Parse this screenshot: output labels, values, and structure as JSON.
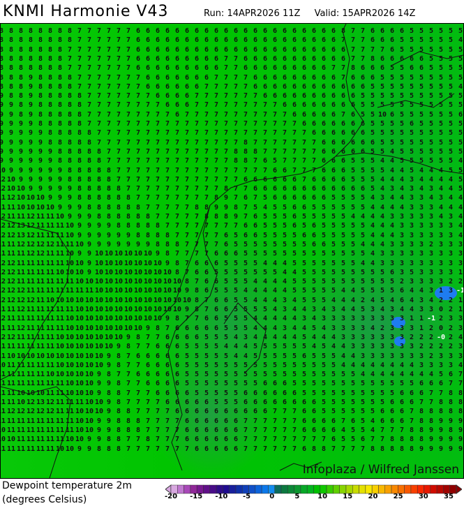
{
  "header": {
    "title": "KNMI Harmonie V43",
    "run": "Run: 14APR2026 11Z",
    "valid": "Valid: 15APR2026 14Z"
  },
  "map": {
    "variable": "Dewpoint temperature 2m",
    "units": "(degrees Celsius)",
    "credit": "Infoplaza / Wilfred Janssen",
    "values": [
      "8 8 8 8 8 8 8 8 7 7 7 7 7 7 6 6 6 6 6 6 6 6 6 6 6 6 6 6 6 6 6 6 6 6 6 8 7 7 6 6 6 6 5 5 5 5 5 5",
      "8 8 8 8 8 8 8 8 7 7 7 7 7 7 6 6 6 6 6 6 6 6 6 6 6 6 6 6 6 6 6 6 6 6 6 7 7 7 6 6 6 5 5 5 5 5 5 4",
      "8 8 8 8 8 8 8 7 7 7 7 7 7 7 6 6 6 6 6 6 6 6 6 6 6 6 6 6 6 6 6 6 6 6 6 6 7 7 7 7 6 5 5 5 5 5 5 5",
      "8 8 8 8 8 8 8 7 7 7 7 7 7 7 6 6 6 6 6 6 6 6 6 7 7 6 6 6 6 6 6 6 6 6 6 6 7 7 8 6 6 6 6 6 5 5 5 5",
      "8 8 8 8 8 8 8 7 7 7 7 7 7 7 6 6 6 6 6 6 6 6 6 7 7 6 6 6 6 6 6 6 6 6 7 7 8 6 6 6 5 5 6 6 5 5 5 5",
      "8 8 8 9 8 8 8 8 7 7 7 7 7 7 7 6 6 6 6 6 6 6 7 7 7 7 6 6 6 6 6 6 6 6 6 7 6 6 6 5 5 5 5 5 5 5 5 5",
      "8 8 8 9 8 8 8 8 7 7 7 7 7 7 7 6 6 6 6 6 6 7 7 7 7 7 6 6 6 6 6 6 6 6 6 6 6 6 5 5 5 5 5 5 5 5 5 4",
      "9 8 8 9 8 8 8 8 8 7 7 7 7 7 7 7 6 6 6 6 7 7 7 7 7 7 7 6 6 6 6 6 6 6 6 6 6 5 5 5 5 5 5 5 5 5 5 5",
      "9 9 8 9 8 8 8 8 8 7 7 7 7 7 7 7 7 6 6 6 7 7 7 7 7 7 7 7 7 6 6 6 6 6 6 6 6 5 5 5 5 5 5 5 5 5 5 5",
      "9 9 8 9 8 8 8 8 8 7 7 7 7 7 7 7 7 7 6 7 7 7 7 7 7 7 7 7 7 7 6 6 6 6 6 7 6 5 5 10 6 5 5 5 5 5 5 6",
      "9 9 9 9 8 8 8 8 8 7 7 7 7 7 7 7 7 7 7 7 7 7 7 7 7 7 7 7 7 7 7 6 6 6 6 6 6 6 5 5 5 5 6 5 5 5 5 5",
      "9 9 9 9 9 8 8 8 8 8 7 7 7 7 7 7 7 7 7 7 7 7 7 7 7 7 7 7 7 7 7 7 6 6 6 6 6 6 5 5 5 5 5 5 5 5 5 5",
      "9 9 9 9 9 8 8 8 8 8 7 7 7 7 7 7 7 7 7 7 7 7 7 7 7 8 7 7 7 7 7 7 7 6 6 6 6 6 6 5 5 5 5 5 5 5 5 5",
      "9 9 9 9 9 9 8 8 8 8 8 7 7 7 7 7 7 7 7 7 7 7 7 7 8 8 8 7 7 7 7 7 7 6 6 6 6 6 5 5 4 5 5 5 5 5 5 5",
      "9 9 9 9 9 9 8 8 8 8 8 7 7 7 7 7 7 7 7 7 7 7 7 7 8 8 7 6 5 7 7 7 7 6 6 6 5 5 5 4 4 5 5 5 5 5 5 4",
      "10 9 9 9 9 9 9 8 8 8 8 8 7 7 7 7 7 7 7 7 7 7 7 7 7 7 7 7 6 6 7 7 7 6 6 6 5 5 5 5 4 4 5 4 4 4 5 5",
      "12 10 9 9 9 9 9 8 8 8 8 8 7 7 7 7 7 7 7 7 7 7 7 7 7 6 6 6 6 6 6 7 6 6 6 6 5 5 5 4 4 4 3 4 4 4 4 5",
      "12 10 10 9 9 9 9 9 8 8 8 8 8 7 7 7 7 7 7 7 7 7 7 8 7 7 6 6 6 6 6 6 6 6 6 6 6 6 5 4 3 4 3 4 3 4 4 5",
      "11 12 10 10 10 9 9 9 8 8 8 8 8 8 7 7 7 7 7 7 7 7 8 9 7 6 7 5 6 6 6 6 6 6 5 5 5 5 4 3 4 4 3 3 4 3 4 4",
      "11 11 10 10 10 10 9 9 9 8 8 8 8 8 8 7 7 7 7 7 8 8 9 9 8 7 5 4 5 5 6 6 5 5 5 5 5 5 4 4 4 4 3 3 3 4 4 4",
      "12 11 11 12 11 11 10 9 9 9 8 8 8 8 8 8 7 7 7 7 7 8 8 8 9 7 6 5 5 5 6 5 5 5 5 5 4 4 4 4 3 3 3 3 3 4 3 4",
      "12 12 13 12 11 11 11 10 9 9 9 9 8 8 8 8 8 7 7 7 7 7 7 7 7 6 6 5 5 5 6 5 6 5 5 5 5 5 4 4 4 3 3 3 3 3 3 4",
      "12 12 13 12 11 11 11 10 9 9 9 9 9 9 8 8 8 8 7 7 7 7 7 6 5 6 6 5 5 5 5 6 6 5 5 5 5 5 4 4 4 3 3 3 3 3 3 4",
      "11 11 12 12 12 12 11 11 10 9 9 9 9 9 9 9 8 8 8 7 7 7 7 6 5 5 5 5 5 5 5 5 6 6 5 5 5 4 4 4 3 3 3 3 2 3 3 3",
      "11 11 11 12 12 11 11 10 9 9 10 10 10 10 10 10 9 8 7 7 7 7 6 6 6 5 5 5 5 5 5 5 5 5 5 5 5 5 4 3 3 3 3 3 3 3 3 3",
      "12 12 11 11 11 11 11 10 10 9 10 10 10 10 10 10 10 9 8 7 6 6 6 5 5 5 5 4 4 4 5 5 5 5 5 5 5 4 4 3 3 3 3 3 3 3 3 3",
      "12 12 11 11 11 11 10 10 10 9 10 10 10 10 10 10 10 10 8 7 6 6 5 5 5 5 5 5 5 4 4 5 5 5 5 5 5 5 5 5 6 3 5 3 3 3 3 1 4",
      "12 12 11 11 11 11 11 11 10 10 10 10 10 10 10 10 10 10 10 8 7 6 6 5 5 5 4 4 4 4 5 5 5 5 5 5 5 5 5 5 5 2 3 3 3 3 2 2",
      "12 12 12 11 11 11 11 11 11 11 10 10 10 10 10 10 10 10 10 9 8 6 5 5 5 4 4 4 4 4 5 5 5 5 5 4 4 5 5 5 5 6 4 4 3 1 3 -1",
      "12 12 12 12 11 10 10 10 10 10 10 10 10 10 10 10 10 10 10 10 8 7 6 6 5 5 4 4 4 3 4 5 5 5 4 4 4 2 4 5 4 6 4 3 4 2 2 1",
      "11 11 12 11 11 11 11 11 10 10 10 10 10 10 10 10 10 10 10 9 8 7 6 6 5 5 5 5 4 3 4 4 3 4 3 4 4 5 3 4 3 4 4 3 3 0 2 1",
      "12 11 11 11 11 11 11 10 10 10 10 10 10 10 10 10 10 9 8 7 7 6 6 5 5 5 4 4 4 4 4 3 4 3 3 3 3 3 3 3 3 3 1 1 -1 2 3 3",
      "11 11 12 11 11 11 11 10 10 10 10 10 10 10 10 9 8 7 6 6 6 6 6 5 5 5 4 4 4 3 4 4 5 4 3 3 3 3 4 2 3 3 3 1 2 0 2 3",
      "12 12 11 11 11 11 10 10 10 10 10 10 10 9 8 7 7 6 6 6 6 5 5 5 4 3 4 4 4 4 4 5 4 4 4 3 3 3 3 3 3 3 2 2 2 -0 2 4",
      "11 11 11 11 11 11 10 10 10 10 10 10 9 8 7 7 6 6 6 5 5 5 5 4 4 4 5 5 5 5 5 5 4 5 4 4 3 3 3 3 3 3 3 2 2 2 2 3",
      "11 10 10 10 10 10 10 10 10 10 10 9 8 7 6 6 6 6 6 5 5 5 5 5 4 4 5 5 5 5 5 6 5 5 5 4 4 3 3 3 3 3 3 3 2 3 3 3",
      "10 11 11 11 11 11 10 10 10 10 10 9 8 7 7 6 6 6 6 5 5 5 5 5 5 5 5 5 5 5 5 5 5 5 5 4 4 4 4 4 4 4 4 3 3 3 3 4",
      "11 11 11 11 11 10 10 10 10 10 9 8 7 7 6 6 6 6 6 5 5 5 5 5 5 5 5 5 5 5 5 5 5 5 5 5 5 4 4 4 4 4 4 4 4 5 6 7",
      "11 11 11 11 11 11 11 10 10 10 9 9 8 7 7 6 6 6 6 5 5 5 5 5 5 5 5 6 6 6 5 5 5 5 5 5 5 5 5 5 5 5 5 6 6 6 7 7",
      "11 11 10 10 10 11 11 10 10 10 9 8 8 7 7 7 6 6 6 6 5 5 5 5 5 6 6 6 6 6 6 5 5 5 5 5 5 5 5 5 5 6 6 6 7 7 8 8",
      "11 11 10 12 13 12 11 11 11 10 10 9 8 7 7 7 7 6 6 6 6 6 5 5 5 6 6 6 6 6 6 6 6 5 5 5 5 5 5 5 6 6 6 7 7 8 8 8",
      "11 12 12 12 12 12 11 11 10 10 10 9 8 8 7 7 7 7 6 6 6 6 6 6 6 6 6 6 7 7 7 6 6 5 5 5 5 5 5 6 6 6 7 8 8 8 8 8",
      "11 11 11 11 11 11 11 11 10 10 9 9 8 8 8 7 7 7 7 6 6 6 6 6 6 7 7 7 7 7 7 6 6 6 6 7 6 5 4 6 6 6 7 8 8 9 9 9",
      "10 11 11 11 11 11 11 11 10 10 9 9 8 8 8 7 7 7 7 6 6 6 6 6 6 7 7 7 7 7 7 6 6 6 6 4 5 5 4 7 7 7 8 8 9 9 8 9",
      "10 10 11 11 11 11 11 10 10 9 9 8 8 7 7 8 7 7 7 6 6 6 6 6 6 7 7 7 7 7 7 7 7 7 6 5 5 6 7 7 8 8 8 8 9 9 9 9",
      "11 11 11 11 11 11 10 10 9 9 8 8 8 7 7 7 7 7 7 7 6 6 6 6 6 7 7 7 7 7 7 6 8 8 7 7 7 7 8 8 8 8 8 9 9 9 9 9"
    ]
  },
  "legend": {
    "title": "Dewpoint temperature 2m",
    "subtitle": "(degrees Celsius)",
    "min": -20,
    "max": 35,
    "ticks": [
      "-20",
      "-15",
      "-10",
      "-5",
      "0",
      "5",
      "10",
      "15",
      "20",
      "25",
      "30",
      "35"
    ],
    "colors": [
      "#d8a8e0",
      "#c078d0",
      "#a848b8",
      "#902898",
      "#781890",
      "#601088",
      "#480c88",
      "#300c88",
      "#200c90",
      "#18209c",
      "#1030a8",
      "#1040b8",
      "#1050c8",
      "#0c64dc",
      "#0c78ea",
      "#148cee",
      "#0c6c5c",
      "#0c7840",
      "#0c8838",
      "#0c9830",
      "#08a828",
      "#04b420",
      "#00c000",
      "#10c800",
      "#38cc00",
      "#60d000",
      "#88d400",
      "#a8d800",
      "#c8dc00",
      "#e4e000",
      "#f8e800",
      "#f8d000",
      "#f8b800",
      "#f8a000",
      "#f88800",
      "#f87000",
      "#f85800",
      "#f84000",
      "#f82800",
      "#e81800",
      "#d00c00",
      "#b80800",
      "#a00400",
      "#900000"
    ]
  }
}
